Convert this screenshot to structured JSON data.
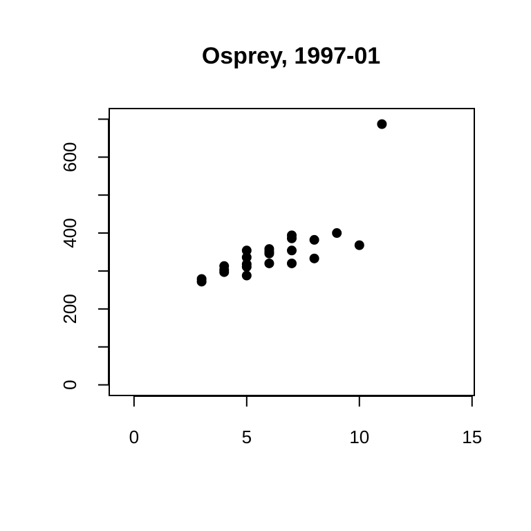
{
  "chart_data": {
    "type": "scatter",
    "title": "Osprey, 1997-01",
    "xlabel": "",
    "ylabel": "",
    "xlim": [
      -1.1,
      15.1
    ],
    "ylim": [
      -28,
      728
    ],
    "x_ticks": [
      0,
      5,
      10,
      15
    ],
    "y_ticks": [
      0,
      100,
      200,
      300,
      400,
      500,
      600,
      700
    ],
    "y_tick_labels": [
      {
        "value": 0,
        "label": "0"
      },
      {
        "value": 200,
        "label": "200"
      },
      {
        "value": 400,
        "label": "400"
      },
      {
        "value": 600,
        "label": "600"
      }
    ],
    "grid": false,
    "point_color": "#000000",
    "points": [
      {
        "x": 3,
        "y": 272
      },
      {
        "x": 3,
        "y": 279
      },
      {
        "x": 4,
        "y": 297
      },
      {
        "x": 4,
        "y": 303
      },
      {
        "x": 4,
        "y": 313
      },
      {
        "x": 5,
        "y": 288
      },
      {
        "x": 5,
        "y": 311
      },
      {
        "x": 5,
        "y": 318
      },
      {
        "x": 5,
        "y": 336
      },
      {
        "x": 5,
        "y": 354
      },
      {
        "x": 6,
        "y": 320
      },
      {
        "x": 6,
        "y": 346
      },
      {
        "x": 6,
        "y": 351
      },
      {
        "x": 6,
        "y": 358
      },
      {
        "x": 7,
        "y": 320
      },
      {
        "x": 7,
        "y": 354
      },
      {
        "x": 7,
        "y": 386
      },
      {
        "x": 7,
        "y": 394
      },
      {
        "x": 8,
        "y": 333
      },
      {
        "x": 8,
        "y": 382
      },
      {
        "x": 9,
        "y": 400
      },
      {
        "x": 10,
        "y": 368
      },
      {
        "x": 11,
        "y": 687
      }
    ]
  }
}
